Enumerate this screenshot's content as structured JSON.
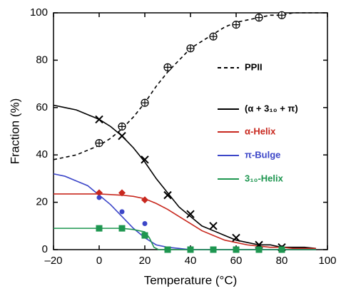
{
  "chart_data": {
    "type": "scatter",
    "xlabel": "Temperature (°C)",
    "ylabel": "Fraction (%)",
    "xlim": [
      -20,
      100
    ],
    "xticks": [
      {
        "value": -20,
        "label": "–20"
      },
      0,
      20,
      40,
      60,
      80,
      100
    ],
    "ylim": [
      0,
      100
    ],
    "yticks": [
      0,
      20,
      40,
      60,
      80,
      100
    ],
    "series": [
      {
        "name": "PPII",
        "color": "#000000",
        "dashed": true,
        "marker": "circle-plus",
        "x": [
          0,
          10,
          20,
          30,
          40,
          50,
          60,
          70,
          80
        ],
        "values": [
          45,
          52,
          62,
          77,
          85,
          90,
          95,
          98,
          99
        ],
        "fit_x": [
          -20,
          -15,
          -10,
          -5,
          0,
          5,
          10,
          15,
          20,
          25,
          30,
          35,
          40,
          45,
          50,
          55,
          60,
          65,
          70,
          75,
          80,
          85,
          90,
          95,
          100
        ],
        "fit_values": [
          38,
          39,
          40,
          42,
          44,
          47,
          51,
          56,
          62,
          69,
          75,
          80,
          85,
          88,
          91,
          94,
          96,
          97,
          98,
          99,
          99,
          100,
          100,
          100,
          100
        ]
      },
      {
        "name": "(α + 3₁₀ + π)",
        "color": "#000000",
        "dashed": false,
        "marker": "cross",
        "x": [
          0,
          10,
          20,
          30,
          40,
          50,
          60,
          70,
          80
        ],
        "values": [
          55,
          48,
          38,
          23,
          15,
          10,
          5,
          2,
          1
        ],
        "fit_x": [
          -20,
          -15,
          -10,
          -5,
          0,
          5,
          10,
          15,
          20,
          25,
          30,
          35,
          40,
          45,
          50,
          55,
          60,
          65,
          70,
          75,
          80,
          85,
          90,
          95
        ],
        "fit_values": [
          61,
          60,
          59,
          57,
          55,
          52,
          48,
          43,
          37,
          30,
          24,
          18,
          14,
          10,
          8,
          6,
          4,
          3,
          2,
          2,
          1,
          1,
          1,
          0.5
        ]
      },
      {
        "name": "α-Helix",
        "color": "#c8281e",
        "dashed": false,
        "marker": "diamond",
        "x": [
          0,
          10,
          20
        ],
        "values": [
          24,
          24,
          21
        ],
        "fit_x": [
          -20,
          -10,
          0,
          10,
          15,
          20,
          25,
          30,
          35,
          40,
          45,
          50,
          55,
          60,
          65,
          70,
          75,
          80,
          85,
          90,
          95
        ],
        "fit_values": [
          23.5,
          23.5,
          23.5,
          23,
          22.5,
          21.5,
          19.5,
          17,
          14,
          11,
          8,
          6,
          4,
          3,
          2,
          1.5,
          1,
          1,
          0.5,
          0.5,
          0.5
        ]
      },
      {
        "name": "π-Bulge",
        "color": "#3c46c8",
        "dashed": false,
        "marker": "dot",
        "x": [
          0,
          10,
          20,
          30,
          40,
          50,
          60,
          70,
          80
        ],
        "values": [
          22,
          16,
          11,
          0,
          0,
          0,
          0,
          0,
          0
        ],
        "fit_x": [
          -20,
          -15,
          -10,
          -5,
          0,
          5,
          10,
          15,
          20,
          25,
          30,
          35,
          40,
          60,
          80,
          95
        ],
        "fit_values": [
          32,
          31,
          29,
          27,
          23,
          19,
          14,
          9,
          5,
          2,
          1,
          0.5,
          0,
          0,
          0,
          0
        ]
      },
      {
        "name": "3₁₀-Helix",
        "color": "#1e9650",
        "dashed": false,
        "marker": "square",
        "x": [
          0,
          10,
          20,
          30,
          40,
          50,
          60,
          70,
          80
        ],
        "values": [
          9,
          9,
          6,
          0,
          0,
          0,
          0,
          0,
          0
        ],
        "fit_x": [
          -20,
          -10,
          0,
          10,
          15,
          20,
          22,
          24,
          26,
          30,
          60,
          95
        ],
        "fit_values": [
          9,
          9,
          9,
          9,
          8.5,
          7.5,
          5,
          1,
          0,
          0,
          0,
          0
        ]
      }
    ]
  }
}
